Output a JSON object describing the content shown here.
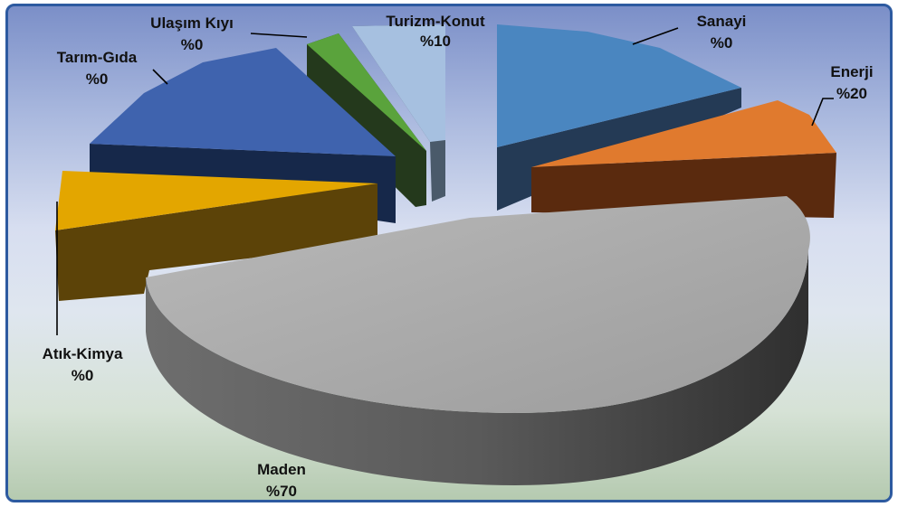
{
  "chart_data": {
    "type": "pie",
    "style": "3d-exploded",
    "slices": [
      {
        "name": "Sanayi",
        "value_label": "%0",
        "color": "#4a86c0"
      },
      {
        "name": "Enerji",
        "value_label": "%20",
        "color": "#e07a2e"
      },
      {
        "name": "Maden",
        "value_label": "%70",
        "color": "#a8a8a8"
      },
      {
        "name": "Atık-Kimya",
        "value_label": "%0",
        "color": "#e3a600"
      },
      {
        "name": "Tarım-Gıda",
        "value_label": "%0",
        "color": "#3f63ae"
      },
      {
        "name": "Ulaşım Kıyı",
        "value_label": "%0",
        "color": "#5aa33c"
      },
      {
        "name": "Turizm-Konut",
        "value_label": "%10",
        "color": "#a6c0e0"
      }
    ]
  }
}
